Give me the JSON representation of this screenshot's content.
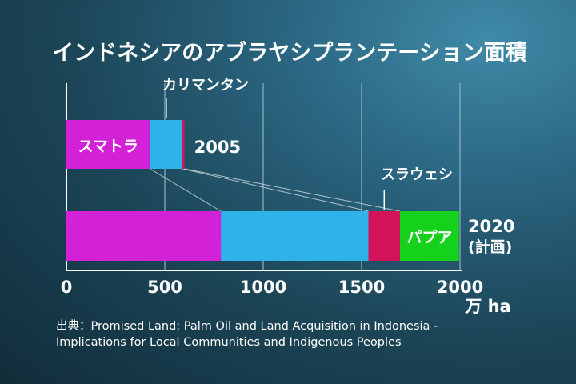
{
  "chart_data": {
    "type": "bar",
    "orientation": "horizontal",
    "stacked": true,
    "title": "インドネシアのアブラヤシプランテーション面積",
    "categories": [
      "2005",
      "2020"
    ],
    "category_labels": [
      {
        "lines": [
          "2005"
        ]
      },
      {
        "lines": [
          "2020",
          "(計画)"
        ]
      }
    ],
    "series": [
      {
        "name": "スマトラ",
        "color": "#d321d8",
        "values": [
          425,
          785
        ]
      },
      {
        "name": "カリマンタン",
        "color": "#2db2ea",
        "values": [
          165,
          750
        ]
      },
      {
        "name": "スラウェシ",
        "color": "#d4145a",
        "values": [
          10,
          160
        ]
      },
      {
        "name": "パプア",
        "color": "#15d11b",
        "values": [
          0,
          300
        ]
      }
    ],
    "xlim": [
      0,
      2000
    ],
    "xticks": [
      0,
      500,
      1000,
      1500,
      2000
    ],
    "unit_label": "万 ha",
    "grid": true,
    "callouts": {
      "kalimantan": "カリマンタン",
      "sulawesi": "スラウェシ"
    }
  },
  "source": {
    "line1": "出典：Promised Land: Palm Oil and Land Acquisition in Indonesia -",
    "line2": "Implications for Local Communities and Indigenous Peoples"
  }
}
